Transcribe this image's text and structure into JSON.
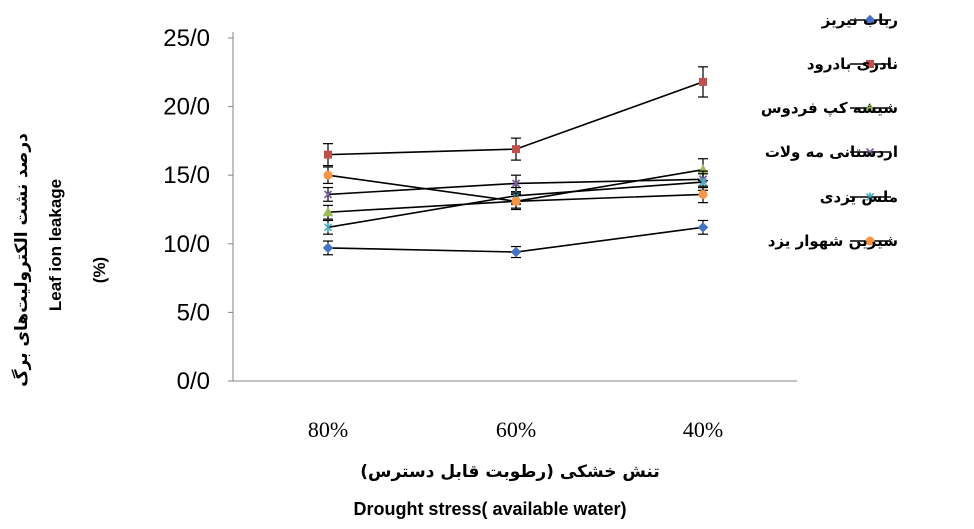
{
  "chart_data": {
    "type": "line",
    "categories": [
      "80%",
      "60%",
      "40%"
    ],
    "ylim": [
      0,
      25
    ],
    "y_ticks": [
      "0/0",
      "5/0",
      "10/0",
      "15/0",
      "20/0",
      "25/0"
    ],
    "y_tick_values": [
      0,
      5,
      10,
      15,
      20,
      25
    ],
    "ylabel_fa": "درصد نشت الکترولیت‌های برگ",
    "ylabel_en_1": "Leaf ion leakage",
    "ylabel_en_2": "(%)",
    "xlabel_fa": "تنش خشکی (رطوبت قابل دسترس)",
    "xlabel_en": "Drought stress( available water)",
    "grid": false,
    "legend_position": "right",
    "series": [
      {
        "name": "رباب نیریز",
        "values": [
          9.7,
          9.4,
          11.2
        ],
        "errors": [
          0.5,
          0.4,
          0.5
        ],
        "color": "#4472C4",
        "marker": "diamond"
      },
      {
        "name": "نادری بادرود",
        "values": [
          16.5,
          16.9,
          21.8
        ],
        "errors": [
          0.8,
          0.8,
          1.1
        ],
        "color": "#C0504D",
        "marker": "square"
      },
      {
        "name": "شیشه کپ فردوس",
        "values": [
          12.3,
          13.1,
          15.4
        ],
        "errors": [
          0.5,
          0.5,
          0.8
        ],
        "color": "#9BBB59",
        "marker": "triangle"
      },
      {
        "name": "اردستانی مه ولات",
        "values": [
          13.6,
          14.4,
          14.7
        ],
        "errors": [
          0.5,
          0.6,
          0.6
        ],
        "color": "#8064A2",
        "marker": "x"
      },
      {
        "name": "ملس یزدی",
        "values": [
          11.2,
          13.5,
          14.5
        ],
        "errors": [
          0.5,
          0.6,
          0.6
        ],
        "color": "#4BACC6",
        "marker": "star"
      },
      {
        "name": "شیرین شهوار یزد",
        "values": [
          15.0,
          13.1,
          13.6
        ],
        "errors": [
          0.6,
          0.6,
          0.6
        ],
        "color": "#F79646",
        "marker": "circle"
      }
    ]
  }
}
